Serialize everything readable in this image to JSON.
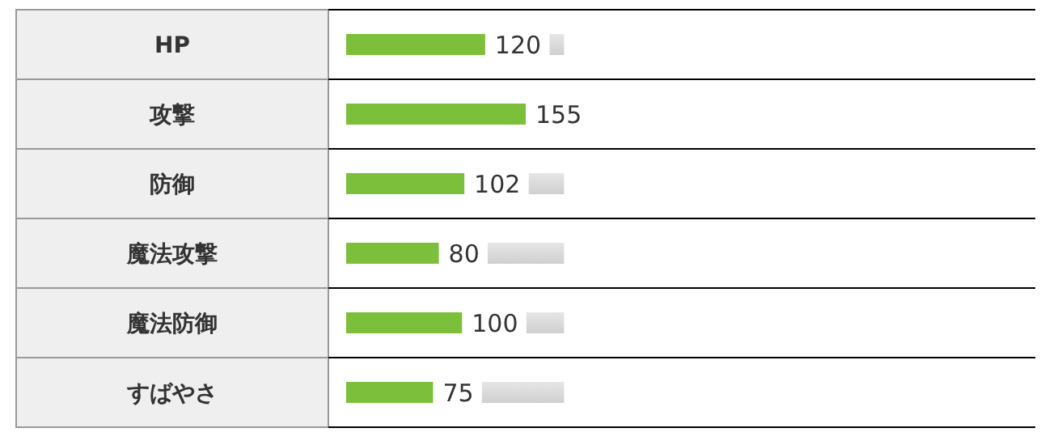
{
  "chart_data": {
    "type": "bar",
    "orientation": "horizontal",
    "categories": [
      "HP",
      "攻撃",
      "防御",
      "魔法攻撃",
      "魔法防御",
      "すばやさ"
    ],
    "values": [
      120,
      155,
      102,
      80,
      100,
      75
    ],
    "data_labels": true,
    "color": "#7cbf3a"
  }
}
